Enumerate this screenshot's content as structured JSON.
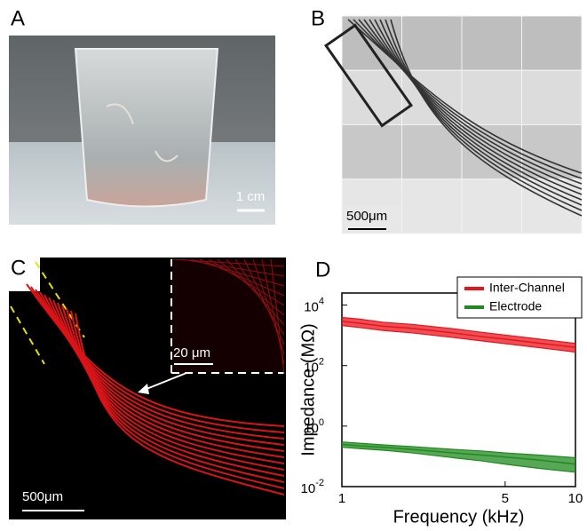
{
  "panels": {
    "A": {
      "label": "A",
      "scale": "1 cm"
    },
    "B": {
      "label": "B",
      "scale": "500μm"
    },
    "C": {
      "label": "C",
      "scale": "500μm",
      "inset_scale": "20 μm"
    }
  },
  "chart_data": {
    "type": "line",
    "panel_label": "D",
    "y_label": "Impedance (MΩ)",
    "x_label": "Frequency (kHz)",
    "log_x": true,
    "log_y": true,
    "legend": "top-right",
    "x": [
      1,
      1.2,
      1.5,
      2,
      3,
      4,
      5,
      7,
      10
    ],
    "xlim": [
      1,
      10
    ],
    "xticks": [
      1,
      5,
      10
    ],
    "ylim": [
      0.01,
      25000
    ],
    "yticks": [
      {
        "value": 0.01,
        "label": "10",
        "exp": "-2"
      },
      {
        "value": 1,
        "label": "10",
        "exp": "0"
      },
      {
        "value": 100,
        "label": "10",
        "exp": "2"
      },
      {
        "value": 10000,
        "label": "10",
        "exp": "4"
      }
    ],
    "series": [
      {
        "name": "Inter-Channel",
        "color": "#e8141c",
        "values": [
          2900,
          2500,
          2000,
          1700,
          1200,
          900,
          750,
          550,
          400
        ],
        "lower": [
          2100,
          1800,
          1450,
          1200,
          850,
          650,
          530,
          390,
          280
        ],
        "upper": [
          3900,
          3400,
          2700,
          2300,
          1650,
          1250,
          1020,
          750,
          540
        ]
      },
      {
        "name": "Electrode",
        "color": "#1f8a1f",
        "values": [
          0.25,
          0.22,
          0.2,
          0.17,
          0.13,
          0.11,
          0.095,
          0.075,
          0.055
        ],
        "lower": [
          0.2,
          0.18,
          0.16,
          0.13,
          0.09,
          0.07,
          0.055,
          0.04,
          0.03
        ],
        "upper": [
          0.3,
          0.27,
          0.24,
          0.21,
          0.17,
          0.15,
          0.13,
          0.11,
          0.09
        ]
      }
    ]
  }
}
